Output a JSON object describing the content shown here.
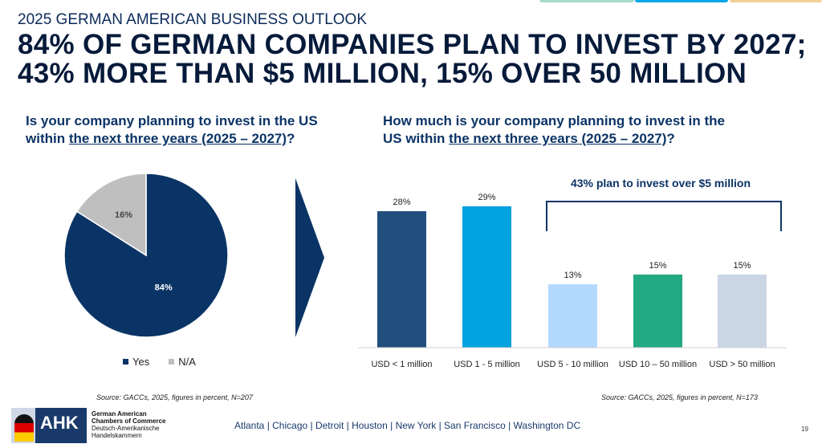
{
  "header": {
    "kicker": "2025 GERMAN AMERICAN BUSINESS OUTLOOK",
    "title_line1": "84% OF GERMAN COMPANIES PLAN TO INVEST BY 2027;",
    "title_line2": "43% MORE THAN $5 MILLION, 15% OVER  50 MILLION"
  },
  "tabs_colors": [
    "#a8dcc8",
    "#00a6e6",
    "#f3cf96"
  ],
  "chart_data": [
    {
      "type": "pie",
      "title_a": "Is your company planning to invest in the US",
      "title_b": "within ",
      "title_u": "the next three years (2025 – 2027)",
      "title_c": "?",
      "slices": [
        {
          "name": "Yes",
          "value": 84,
          "label": "84%",
          "color": "#0b3466"
        },
        {
          "name": "N/A",
          "value": 16,
          "label": "16%",
          "color": "#bfbfbf"
        }
      ],
      "legend": "bottom",
      "source": "Source: GACCs, 2025, figures in percent, N=207"
    },
    {
      "type": "bar",
      "title_a": "How much is your company planning to invest in the",
      "title_b": "US within ",
      "title_u": "the next three years (2025 – 2027)",
      "title_c": "?",
      "categories": [
        "USD < 1 million",
        "USD 1 - 5 million",
        "USD 5 - 10 million",
        "USD 10 – 50 million",
        "USD > 50 million"
      ],
      "values": [
        28,
        29,
        13,
        15,
        15
      ],
      "labels": [
        "28%",
        "29%",
        "13%",
        "15%",
        "15%"
      ],
      "colors": [
        "#224e7d",
        "#00a2e0",
        "#b3d9ff",
        "#23a982",
        "#cbd6e5"
      ],
      "annotation": "43% plan to invest over $5 million",
      "source": "Source: GACCs, 2025, figures in percent, N=173"
    }
  ],
  "footer": {
    "logo_text": "AHK",
    "org1": "German American",
    "org2": "Chambers of Commerce",
    "org3": "Deutsch-Amerikanische",
    "org4": "Handelskammern",
    "cities": "Atlanta | Chicago | Detroit | Houston | New York | San Francisco | Washington DC",
    "page": "19"
  }
}
